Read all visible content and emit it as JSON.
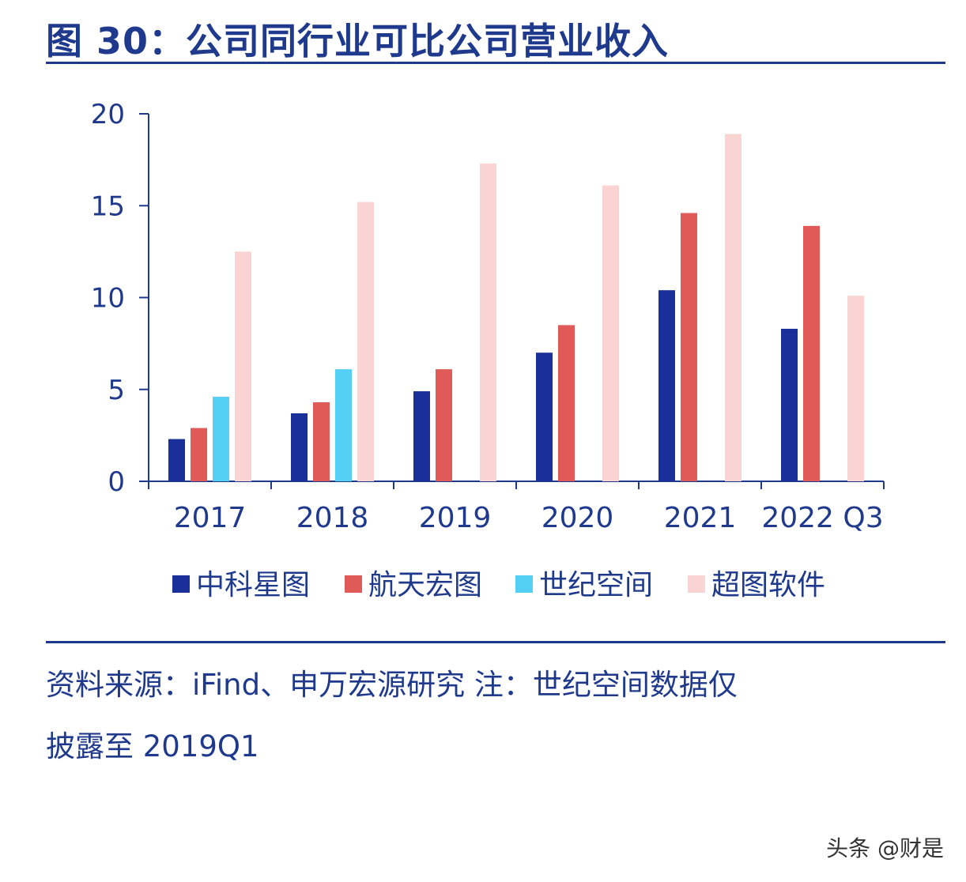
{
  "header": {
    "title": "图 30：公司同行业可比公司营业收入"
  },
  "chart_data": {
    "type": "bar",
    "title": "",
    "xlabel": "",
    "ylabel": "",
    "ylim": [
      0,
      20
    ],
    "yticks": [
      0,
      5,
      10,
      15,
      20
    ],
    "categories": [
      "2017",
      "2018",
      "2019",
      "2020",
      "2021",
      "2022 Q3"
    ],
    "series": [
      {
        "name": "中科星图",
        "color": "#1a2f99",
        "values": [
          2.3,
          3.7,
          4.9,
          7.0,
          10.4,
          8.3
        ]
      },
      {
        "name": "航天宏图",
        "color": "#e05a57",
        "values": [
          2.9,
          4.3,
          6.1,
          8.5,
          14.6,
          13.9
        ]
      },
      {
        "name": "世纪空间",
        "color": "#55d0f5",
        "values": [
          4.6,
          6.1,
          null,
          null,
          null,
          null
        ]
      },
      {
        "name": "超图软件",
        "color": "#fad3d3",
        "values": [
          12.5,
          15.2,
          17.3,
          16.1,
          18.9,
          10.1
        ]
      }
    ],
    "legend_position": "bottom"
  },
  "footer": {
    "source_line1": "资料来源：iFind、申万宏源研究  注：世纪空间数据仅",
    "source_line2": "披露至 2019Q1"
  },
  "watermark": "头条 @财是",
  "colors": {
    "axis": "#1f3a8c",
    "text": "#1f3a8c"
  }
}
